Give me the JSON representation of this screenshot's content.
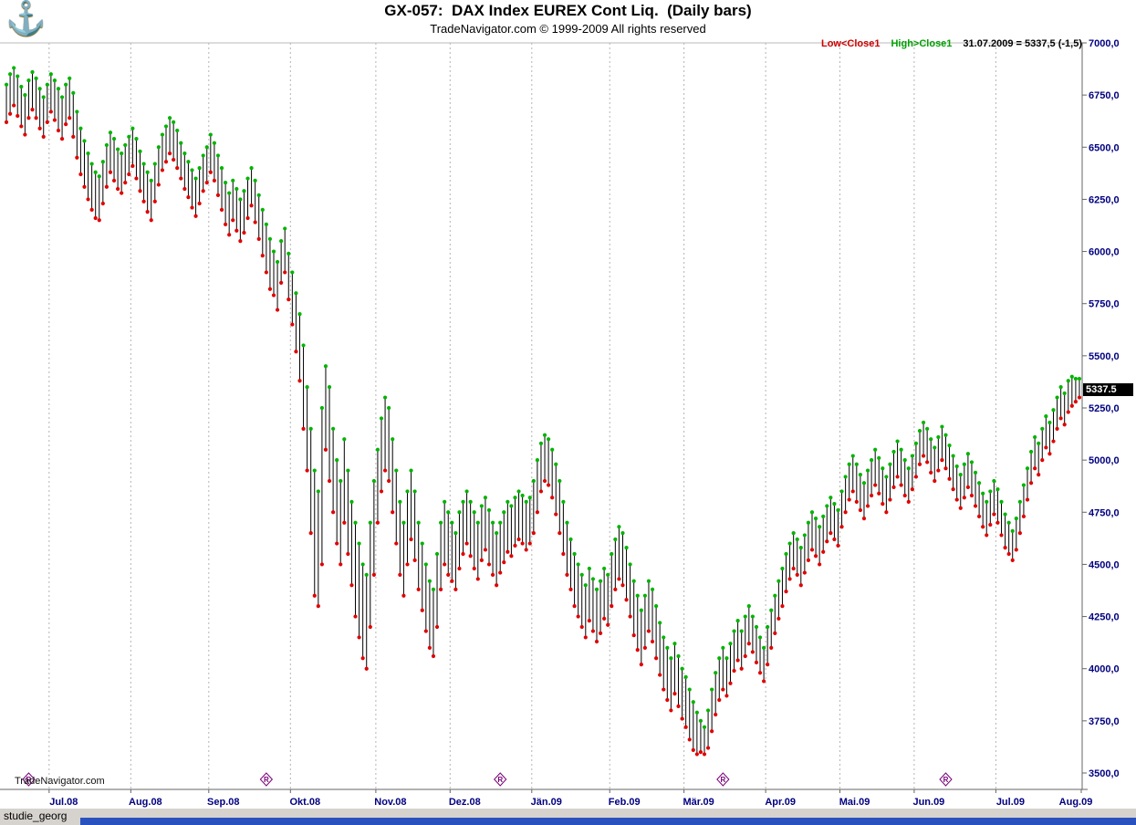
{
  "window": {
    "status_tab": "studie_georg"
  },
  "header": {
    "title": "GX-057:  DAX Index EUREX Cont Liq.  (Daily bars)",
    "subtitle": "TradeNavigator.com © 1999-2009 All rights reserved"
  },
  "legend": {
    "low_label": "Low<Close1",
    "high_label": "High>Close1",
    "status_text": "31.07.2009 = 5337,5 (-1,5)",
    "low_color": "#cc0000",
    "high_color": "#00a000"
  },
  "watermark": "TradeNavigator.com",
  "price_tag": {
    "text": "5337.5",
    "value": 5337.5
  },
  "chart_data": {
    "type": "bar",
    "subtype": "daily high-low bars",
    "title": "GX-057: DAX Index EUREX Cont Liq. (Daily bars)",
    "instrument": "DAX Index EUREX Cont Liq.",
    "last_date": "31.07.2009",
    "last_close": 5337.5,
    "change": -1.5,
    "y_axis": {
      "min": 3500,
      "max": 7000,
      "step": 250,
      "tick_labels": [
        "7000,0",
        "6750,0",
        "6500,0",
        "6250,0",
        "6000,0",
        "5750,0",
        "5500,0",
        "5250,0",
        "5000,0",
        "4750,0",
        "4500,0",
        "4250,0",
        "4000,0",
        "3750,0",
        "3500,0"
      ]
    },
    "x_axis": {
      "labels": [
        "Jul.08",
        "Aug.08",
        "Sep.08",
        "Okt.08",
        "Nov.08",
        "Dez.08",
        "Jän.09",
        "Feb.09",
        "Mär.09",
        "Apr.09",
        "Mai.09",
        "Jun.09",
        "Jul.09",
        "Aug.09"
      ],
      "start_indices": [
        12,
        34,
        55,
        77,
        100,
        120,
        142,
        163,
        183,
        205,
        225,
        245,
        267,
        290
      ],
      "end_index": 290
    },
    "bars": [
      [
        6800,
        6620
      ],
      [
        6850,
        6660
      ],
      [
        6880,
        6700
      ],
      [
        6840,
        6650
      ],
      [
        6790,
        6600
      ],
      [
        6750,
        6560
      ],
      [
        6820,
        6640
      ],
      [
        6860,
        6680
      ],
      [
        6830,
        6640
      ],
      [
        6780,
        6590
      ],
      [
        6740,
        6550
      ],
      [
        6800,
        6620
      ],
      [
        6850,
        6670
      ],
      [
        6820,
        6630
      ],
      [
        6780,
        6580
      ],
      [
        6740,
        6540
      ],
      [
        6800,
        6610
      ],
      [
        6830,
        6640
      ],
      [
        6760,
        6550
      ],
      [
        6670,
        6450
      ],
      [
        6590,
        6370
      ],
      [
        6530,
        6310
      ],
      [
        6470,
        6250
      ],
      [
        6420,
        6200
      ],
      [
        6380,
        6160
      ],
      [
        6360,
        6150
      ],
      [
        6430,
        6230
      ],
      [
        6510,
        6310
      ],
      [
        6570,
        6380
      ],
      [
        6540,
        6340
      ],
      [
        6490,
        6300
      ],
      [
        6470,
        6280
      ],
      [
        6510,
        6330
      ],
      [
        6550,
        6370
      ],
      [
        6590,
        6410
      ],
      [
        6540,
        6350
      ],
      [
        6480,
        6290
      ],
      [
        6420,
        6240
      ],
      [
        6380,
        6190
      ],
      [
        6340,
        6150
      ],
      [
        6420,
        6240
      ],
      [
        6500,
        6320
      ],
      [
        6560,
        6390
      ],
      [
        6600,
        6430
      ],
      [
        6640,
        6470
      ],
      [
        6620,
        6440
      ],
      [
        6580,
        6400
      ],
      [
        6520,
        6350
      ],
      [
        6470,
        6300
      ],
      [
        6430,
        6260
      ],
      [
        6390,
        6210
      ],
      [
        6350,
        6170
      ],
      [
        6400,
        6230
      ],
      [
        6460,
        6290
      ],
      [
        6500,
        6330
      ],
      [
        6560,
        6380
      ],
      [
        6520,
        6340
      ],
      [
        6460,
        6270
      ],
      [
        6400,
        6200
      ],
      [
        6330,
        6130
      ],
      [
        6280,
        6080
      ],
      [
        6340,
        6150
      ],
      [
        6300,
        6100
      ],
      [
        6250,
        6050
      ],
      [
        6290,
        6090
      ],
      [
        6350,
        6160
      ],
      [
        6400,
        6220
      ],
      [
        6340,
        6140
      ],
      [
        6270,
        6060
      ],
      [
        6200,
        5980
      ],
      [
        6130,
        5900
      ],
      [
        6060,
        5820
      ],
      [
        6000,
        5790
      ],
      [
        5950,
        5720
      ],
      [
        6050,
        5850
      ],
      [
        6110,
        5900
      ],
      [
        5990,
        5770
      ],
      [
        5900,
        5650
      ],
      [
        5800,
        5520
      ],
      [
        5700,
        5380
      ],
      [
        5550,
        5150
      ],
      [
        5350,
        4950
      ],
      [
        5150,
        4650
      ],
      [
        4950,
        4350
      ],
      [
        4850,
        4300
      ],
      [
        5250,
        4500
      ],
      [
        5450,
        5050
      ],
      [
        5350,
        4900
      ],
      [
        5150,
        4750
      ],
      [
        5000,
        4600
      ],
      [
        4900,
        4500
      ],
      [
        5100,
        4700
      ],
      [
        4950,
        4550
      ],
      [
        4800,
        4400
      ],
      [
        4700,
        4250
      ],
      [
        4600,
        4150
      ],
      [
        4500,
        4050
      ],
      [
        4450,
        4000
      ],
      [
        4700,
        4200
      ],
      [
        4900,
        4450
      ],
      [
        5050,
        4700
      ],
      [
        5200,
        4850
      ],
      [
        5300,
        4950
      ],
      [
        5250,
        4900
      ],
      [
        5100,
        4750
      ],
      [
        4950,
        4600
      ],
      [
        4800,
        4450
      ],
      [
        4700,
        4350
      ],
      [
        4850,
        4500
      ],
      [
        4950,
        4620
      ],
      [
        4850,
        4520
      ],
      [
        4700,
        4380
      ],
      [
        4600,
        4280
      ],
      [
        4500,
        4180
      ],
      [
        4420,
        4100
      ],
      [
        4380,
        4060
      ],
      [
        4550,
        4200
      ],
      [
        4700,
        4380
      ],
      [
        4800,
        4500
      ],
      [
        4750,
        4450
      ],
      [
        4700,
        4420
      ],
      [
        4650,
        4380
      ],
      [
        4750,
        4480
      ],
      [
        4800,
        4550
      ],
      [
        4850,
        4600
      ],
      [
        4800,
        4540
      ],
      [
        4750,
        4480
      ],
      [
        4700,
        4430
      ],
      [
        4780,
        4520
      ],
      [
        4820,
        4570
      ],
      [
        4760,
        4500
      ],
      [
        4700,
        4450
      ],
      [
        4650,
        4400
      ],
      [
        4700,
        4460
      ],
      [
        4750,
        4510
      ],
      [
        4800,
        4560
      ],
      [
        4780,
        4540
      ],
      [
        4820,
        4590
      ],
      [
        4850,
        4620
      ],
      [
        4830,
        4600
      ],
      [
        4800,
        4570
      ],
      [
        4820,
        4600
      ],
      [
        4900,
        4650
      ],
      [
        5000,
        4750
      ],
      [
        5080,
        4850
      ],
      [
        5120,
        4900
      ],
      [
        5100,
        4880
      ],
      [
        5050,
        4820
      ],
      [
        4980,
        4740
      ],
      [
        4900,
        4650
      ],
      [
        4800,
        4550
      ],
      [
        4700,
        4450
      ],
      [
        4620,
        4380
      ],
      [
        4550,
        4300
      ],
      [
        4500,
        4250
      ],
      [
        4450,
        4200
      ],
      [
        4400,
        4150
      ],
      [
        4480,
        4230
      ],
      [
        4430,
        4180
      ],
      [
        4380,
        4130
      ],
      [
        4420,
        4170
      ],
      [
        4480,
        4240
      ],
      [
        4450,
        4210
      ],
      [
        4550,
        4300
      ],
      [
        4620,
        4380
      ],
      [
        4680,
        4430
      ],
      [
        4650,
        4400
      ],
      [
        4580,
        4330
      ],
      [
        4500,
        4250
      ],
      [
        4420,
        4160
      ],
      [
        4350,
        4090
      ],
      [
        4280,
        4020
      ],
      [
        4350,
        4100
      ],
      [
        4420,
        4180
      ],
      [
        4380,
        4130
      ],
      [
        4300,
        4050
      ],
      [
        4220,
        3970
      ],
      [
        4150,
        3900
      ],
      [
        4100,
        3850
      ],
      [
        4050,
        3800
      ],
      [
        4120,
        3880
      ],
      [
        4060,
        3820
      ],
      [
        4000,
        3760
      ],
      [
        3960,
        3720
      ],
      [
        3900,
        3660
      ],
      [
        3840,
        3610
      ],
      [
        3790,
        3590
      ],
      [
        3750,
        3600
      ],
      [
        3720,
        3590
      ],
      [
        3800,
        3620
      ],
      [
        3900,
        3700
      ],
      [
        3980,
        3780
      ],
      [
        4050,
        3850
      ],
      [
        4100,
        3900
      ],
      [
        4050,
        3870
      ],
      [
        4120,
        3930
      ],
      [
        4180,
        3990
      ],
      [
        4230,
        4040
      ],
      [
        4180,
        4000
      ],
      [
        4250,
        4060
      ],
      [
        4300,
        4120
      ],
      [
        4250,
        4080
      ],
      [
        4200,
        4030
      ],
      [
        4150,
        3980
      ],
      [
        4100,
        3940
      ],
      [
        4200,
        4020
      ],
      [
        4280,
        4100
      ],
      [
        4350,
        4170
      ],
      [
        4420,
        4240
      ],
      [
        4480,
        4300
      ],
      [
        4550,
        4370
      ],
      [
        4600,
        4430
      ],
      [
        4650,
        4480
      ],
      [
        4620,
        4450
      ],
      [
        4580,
        4400
      ],
      [
        4640,
        4460
      ],
      [
        4700,
        4520
      ],
      [
        4750,
        4570
      ],
      [
        4720,
        4540
      ],
      [
        4680,
        4500
      ],
      [
        4730,
        4560
      ],
      [
        4780,
        4610
      ],
      [
        4820,
        4650
      ],
      [
        4790,
        4620
      ],
      [
        4760,
        4590
      ],
      [
        4850,
        4680
      ],
      [
        4920,
        4750
      ],
      [
        4980,
        4810
      ],
      [
        5020,
        4850
      ],
      [
        4980,
        4800
      ],
      [
        4930,
        4760
      ],
      [
        4890,
        4720
      ],
      [
        4950,
        4780
      ],
      [
        5000,
        4830
      ],
      [
        5050,
        4880
      ],
      [
        5010,
        4840
      ],
      [
        4960,
        4790
      ],
      [
        4920,
        4750
      ],
      [
        4980,
        4810
      ],
      [
        5040,
        4870
      ],
      [
        5090,
        4920
      ],
      [
        5050,
        4880
      ],
      [
        5000,
        4830
      ],
      [
        4960,
        4800
      ],
      [
        5020,
        4860
      ],
      [
        5080,
        4920
      ],
      [
        5140,
        4980
      ],
      [
        5180,
        5020
      ],
      [
        5150,
        4990
      ],
      [
        5100,
        4940
      ],
      [
        5060,
        4900
      ],
      [
        5110,
        4950
      ],
      [
        5160,
        5000
      ],
      [
        5120,
        4960
      ],
      [
        5070,
        4910
      ],
      [
        5020,
        4860
      ],
      [
        4970,
        4810
      ],
      [
        4930,
        4770
      ],
      [
        4980,
        4820
      ],
      [
        5030,
        4870
      ],
      [
        4990,
        4830
      ],
      [
        4940,
        4780
      ],
      [
        4890,
        4730
      ],
      [
        4840,
        4680
      ],
      [
        4800,
        4640
      ],
      [
        4850,
        4690
      ],
      [
        4900,
        4740
      ],
      [
        4860,
        4700
      ],
      [
        4800,
        4640
      ],
      [
        4740,
        4580
      ],
      [
        4700,
        4550
      ],
      [
        4660,
        4520
      ],
      [
        4720,
        4570
      ],
      [
        4800,
        4650
      ],
      [
        4880,
        4730
      ],
      [
        4960,
        4810
      ],
      [
        5040,
        4890
      ],
      [
        5110,
        4960
      ],
      [
        5080,
        4930
      ],
      [
        5150,
        5000
      ],
      [
        5210,
        5060
      ],
      [
        5180,
        5030
      ],
      [
        5240,
        5090
      ],
      [
        5300,
        5150
      ],
      [
        5350,
        5200
      ],
      [
        5320,
        5170
      ],
      [
        5380,
        5230
      ],
      [
        5400,
        5260
      ],
      [
        5390,
        5280
      ],
      [
        5390,
        5300
      ]
    ],
    "rollover_markers": {
      "symbol": "R",
      "color": "#7a007a",
      "indices": [
        6,
        70,
        133,
        193,
        253
      ]
    },
    "colors": {
      "bar": "#000000",
      "high_dot": "#00b400",
      "low_dot": "#e10000",
      "grid": "#b4b4b4",
      "axis_text": "#000080",
      "frame": "#666666"
    }
  }
}
